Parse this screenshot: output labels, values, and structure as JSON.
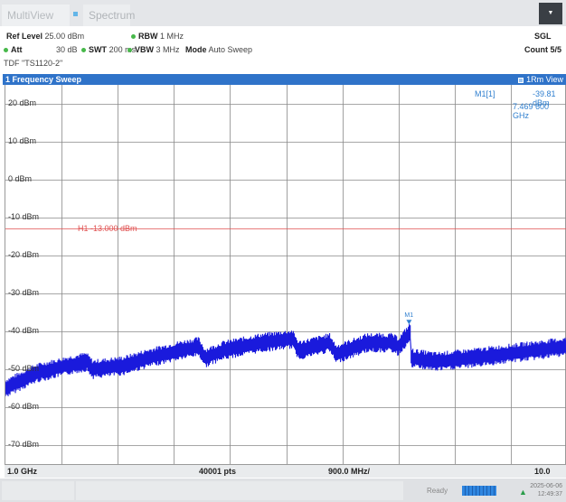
{
  "tabs": {
    "multiview": "MultiView",
    "spectrum": "Spectrum"
  },
  "menu_icon": "dropdown-caret-icon",
  "settings": {
    "ref_level_label": "Ref Level",
    "ref_level_value": "25.00 dBm",
    "att_label": "Att",
    "att_value": "30 dB",
    "swt_label": "SWT",
    "swt_value": "200 ms",
    "rbw_label": "RBW",
    "rbw_value": "1 MHz",
    "vbw_label": "VBW",
    "vbw_value": "3 MHz",
    "mode_label": "Mode",
    "mode_value": "Auto Sweep",
    "tdf": "TDF \"TS1120-2\"",
    "sgl": "SGL",
    "count": "Count 5/5"
  },
  "window": {
    "title": "1 Frequency Sweep",
    "view": "1Rm View"
  },
  "marker": {
    "name": "M1[1]",
    "level": "-39.81 dBm",
    "freq": "7.469 600 GHz",
    "tag": "M1"
  },
  "hline": {
    "label": "H1 -13.000 dBm",
    "level_dbm": -13.0
  },
  "axis": {
    "start": "1.0 GHz",
    "points": "40001 pts",
    "step": "900.0 MHz/",
    "stop": "10.0 GHz"
  },
  "status": {
    "ready": "Ready",
    "date": "2025-06-06",
    "time": "12:49:37"
  },
  "chart_data": {
    "type": "line",
    "ylabels": [
      "20 dBm",
      "10 dBm",
      "0 dBm",
      "-10 dBm",
      "-20 dBm",
      "-30 dBm",
      "-40 dBm",
      "-50 dBm",
      "-60 dBm",
      "-70 dBm"
    ],
    "ylim": [
      -75,
      25
    ],
    "xlim": [
      1.0,
      10.0
    ],
    "x_unit": "GHz",
    "grid": true,
    "trace_color": "#1a1adc",
    "hline_color": "#e05050",
    "series": [
      {
        "x": [
          1.0,
          1.5,
          2.0,
          2.3,
          2.4,
          2.9,
          3.3,
          3.8,
          4.1,
          4.2,
          4.5,
          5.1,
          5.6,
          5.7,
          6.2,
          6.3,
          6.8,
          7.2,
          7.3,
          7.5,
          7.5,
          7.9,
          8.5,
          9.0,
          10.0
        ],
        "y": [
          -55,
          -51,
          -49,
          -48,
          -50,
          -49,
          -47,
          -45,
          -44,
          -47,
          -45,
          -43,
          -42,
          -45,
          -43,
          -46,
          -43,
          -43,
          -44,
          -40,
          -47,
          -48,
          -47,
          -46,
          -44
        ]
      }
    ],
    "marker": {
      "x": 7.4696,
      "y": -39.81
    }
  }
}
